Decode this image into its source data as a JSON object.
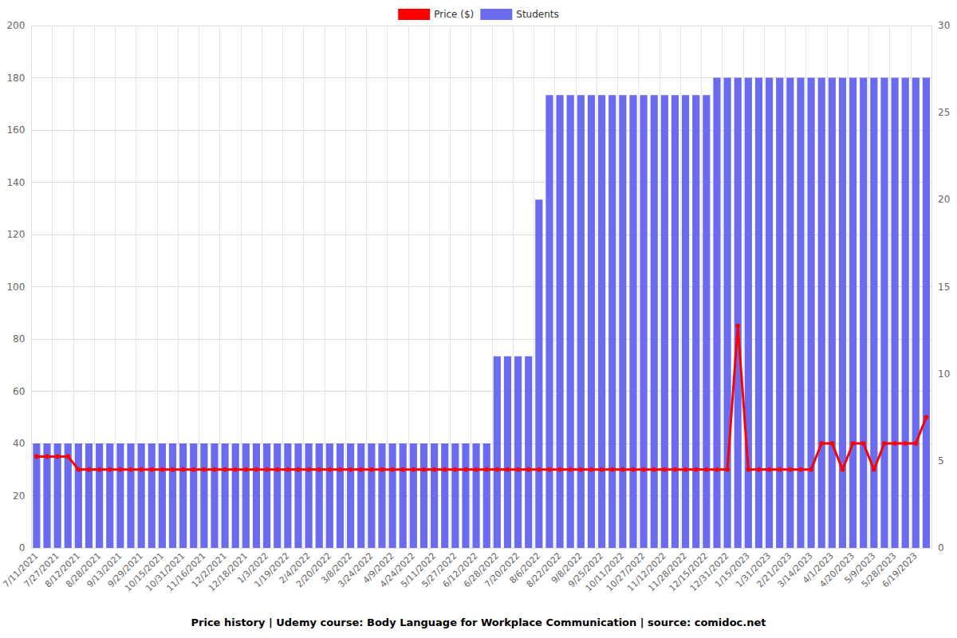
{
  "chart_data": {
    "type": "bar",
    "title": "Price history | Udemy course: Body Language for Workplace Communication | source: comidoc.net",
    "categories": [
      "7/11/2021",
      null,
      "7/27/2021",
      null,
      "8/12/2021",
      null,
      "8/28/2021",
      null,
      "9/13/2021",
      null,
      "9/29/2021",
      null,
      "10/15/2021",
      null,
      "10/31/2021",
      null,
      "11/16/2021",
      null,
      "12/2/2021",
      null,
      "12/18/2021",
      null,
      "1/3/2022",
      null,
      "1/19/2022",
      null,
      "2/4/2022",
      null,
      "2/20/2022",
      null,
      "3/8/2022",
      null,
      "3/24/2022",
      null,
      "4/9/2022",
      null,
      "4/24/2022",
      null,
      "5/11/2022",
      null,
      "5/27/2022",
      null,
      "6/12/2022",
      null,
      "6/28/2022",
      null,
      "7/20/2022",
      null,
      "8/6/2022",
      null,
      "8/22/2022",
      null,
      "9/8/2022",
      null,
      "9/25/2022",
      null,
      "10/11/2022",
      null,
      "10/27/2022",
      null,
      "11/12/2022",
      null,
      "11/28/2022",
      null,
      "12/15/2022",
      null,
      "12/31/2022",
      null,
      "1/15/2023",
      null,
      "1/31/2023",
      null,
      "2/21/2023",
      null,
      "3/14/2023",
      null,
      "4/1/2023",
      null,
      "4/20/2023",
      null,
      "5/9/2023",
      null,
      "5/28/2023",
      null,
      "6/19/2023",
      null
    ],
    "series": [
      {
        "name": "Price ($)",
        "type": "line",
        "color": "#ff0000",
        "marker": "circle",
        "values": [
          35,
          35,
          35,
          35,
          30,
          30,
          30,
          30,
          30,
          30,
          30,
          30,
          30,
          30,
          30,
          30,
          30,
          30,
          30,
          30,
          30,
          30,
          30,
          30,
          30,
          30,
          30,
          30,
          30,
          30,
          30,
          30,
          30,
          30,
          30,
          30,
          30,
          30,
          30,
          30,
          30,
          30,
          30,
          30,
          30,
          30,
          30,
          30,
          30,
          30,
          30,
          30,
          30,
          30,
          30,
          30,
          30,
          30,
          30,
          30,
          30,
          30,
          30,
          30,
          30,
          30,
          30,
          85,
          30,
          30,
          30,
          30,
          30,
          30,
          30,
          40,
          40,
          30,
          40,
          40,
          30,
          40,
          40,
          40,
          40,
          50
        ]
      },
      {
        "name": "Students",
        "type": "bar",
        "color": "#6b6bef",
        "axis": "y2",
        "values": [
          6,
          6,
          6,
          6,
          6,
          6,
          6,
          6,
          6,
          6,
          6,
          6,
          6,
          6,
          6,
          6,
          6,
          6,
          6,
          6,
          6,
          6,
          6,
          6,
          6,
          6,
          6,
          6,
          6,
          6,
          6,
          6,
          6,
          6,
          6,
          6,
          6,
          6,
          6,
          6,
          6,
          6,
          6,
          6,
          11,
          11,
          11,
          11,
          20,
          26,
          26,
          26,
          26,
          26,
          26,
          26,
          26,
          26,
          26,
          26,
          26,
          26,
          26,
          26,
          26,
          27,
          27,
          27,
          27,
          27,
          27,
          27,
          27,
          27,
          27,
          27,
          27,
          27,
          27,
          27,
          27,
          27,
          27,
          27,
          27,
          27
        ]
      }
    ],
    "ylim": [
      0,
      200
    ],
    "yticks": [
      0,
      20,
      40,
      60,
      80,
      100,
      120,
      140,
      160,
      180,
      200
    ],
    "y2lim": [
      0,
      30
    ],
    "y2ticks": [
      0,
      5,
      10,
      15,
      20,
      25,
      30
    ],
    "grid": true,
    "legend": "top"
  }
}
